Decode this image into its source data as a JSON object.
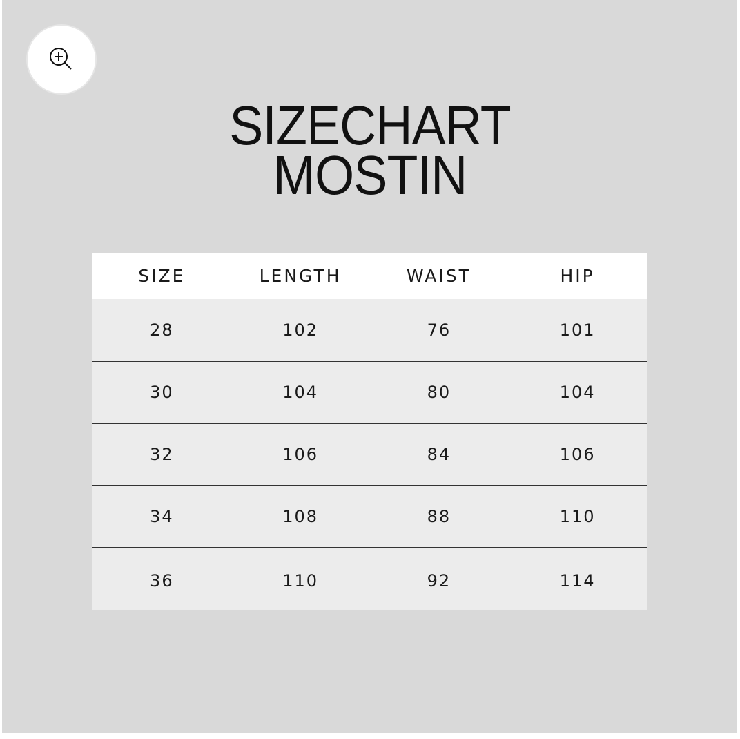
{
  "title_lines": [
    "SIZECHART",
    "MOSTIN"
  ],
  "zoom_button": {
    "icon": "zoom-in-icon"
  },
  "table": {
    "headers": [
      "SIZE",
      "LENGTH",
      "WAIST",
      "HIP"
    ],
    "rows": [
      [
        "28",
        "102",
        "76",
        "101"
      ],
      [
        "30",
        "104",
        "80",
        "104"
      ],
      [
        "32",
        "106",
        "84",
        "106"
      ],
      [
        "34",
        "108",
        "88",
        "110"
      ],
      [
        "36",
        "110",
        "92",
        "114"
      ]
    ]
  }
}
